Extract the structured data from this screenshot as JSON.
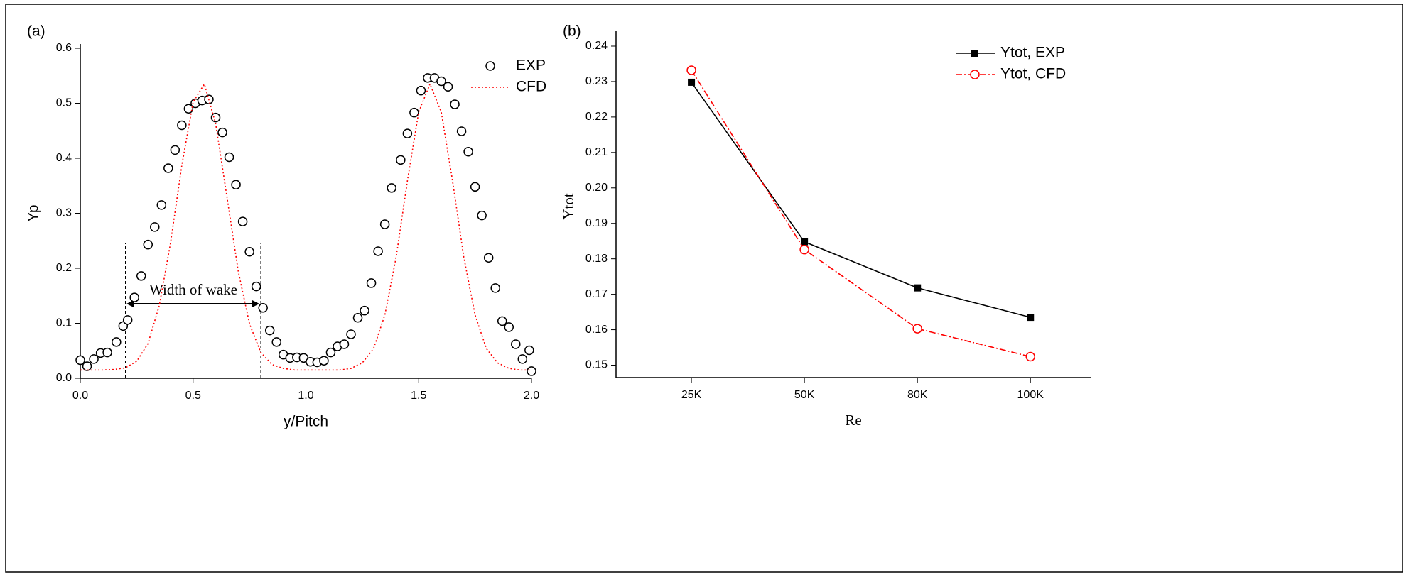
{
  "chart_data": [
    {
      "type": "line",
      "panel_label": "(a)",
      "xlabel": "y/Pitch",
      "ylabel": "Yp",
      "annotation": "Width of wake",
      "xlim": [
        0,
        2
      ],
      "xticks": [
        {
          "value": 0,
          "label": "0.0"
        },
        0.5,
        {
          "value": 1,
          "label": "1.0"
        },
        1.5,
        {
          "value": 2,
          "label": "2.0"
        }
      ],
      "ylim": [
        0,
        0.6
      ],
      "yticks": [
        {
          "value": 0,
          "label": "0.0"
        },
        0.1,
        0.2,
        0.3,
        0.4,
        0.5,
        0.6
      ],
      "legend": "upper right",
      "series": [
        {
          "name": "EXP",
          "color": "#000000",
          "marker": "circle",
          "linestyle": "none",
          "x": [
            0.0,
            0.03,
            0.06,
            0.09,
            0.12,
            0.16,
            0.19,
            0.21,
            0.24,
            0.27,
            0.3,
            0.33,
            0.36,
            0.39,
            0.42,
            0.45,
            0.48,
            0.51,
            0.54,
            0.57,
            0.6,
            0.63,
            0.66,
            0.69,
            0.72,
            0.75,
            0.78,
            0.81,
            0.84,
            0.87,
            0.9,
            0.93,
            0.96,
            0.99,
            1.02,
            1.05,
            1.08,
            1.11,
            1.14,
            1.17,
            1.2,
            1.23,
            1.26,
            1.29,
            1.32,
            1.35,
            1.38,
            1.42,
            1.45,
            1.48,
            1.51,
            1.54,
            1.57,
            1.6,
            1.63,
            1.66,
            1.69,
            1.72,
            1.75,
            1.78,
            1.81,
            1.84,
            1.87,
            1.9,
            1.93,
            1.96,
            1.99,
            2.0
          ],
          "values": [
            0.033,
            0.022,
            0.035,
            0.046,
            0.047,
            0.066,
            0.095,
            0.106,
            0.147,
            0.186,
            0.243,
            0.275,
            0.315,
            0.382,
            0.415,
            0.46,
            0.49,
            0.5,
            0.505,
            0.507,
            0.474,
            0.447,
            0.402,
            0.352,
            0.285,
            0.23,
            0.167,
            0.128,
            0.087,
            0.066,
            0.043,
            0.037,
            0.038,
            0.037,
            0.03,
            0.029,
            0.032,
            0.047,
            0.058,
            0.062,
            0.08,
            0.11,
            0.123,
            0.173,
            0.231,
            0.28,
            0.346,
            0.397,
            0.445,
            0.483,
            0.523,
            0.546,
            0.546,
            0.54,
            0.53,
            0.498,
            0.449,
            0.412,
            0.348,
            0.296,
            0.219,
            0.164,
            0.104,
            0.093,
            0.062,
            0.035,
            0.051,
            0.013
          ]
        },
        {
          "name": "CFD",
          "color": "#ff0000",
          "marker": "none",
          "linestyle": "dotted",
          "x": [
            0,
            0.05,
            0.1,
            0.15,
            0.2,
            0.25,
            0.3,
            0.35,
            0.4,
            0.45,
            0.5,
            0.55,
            0.6,
            0.65,
            0.7,
            0.75,
            0.8,
            0.85,
            0.9,
            0.95,
            1.0,
            1.05,
            1.1,
            1.15,
            1.2,
            1.25,
            1.3,
            1.35,
            1.4,
            1.45,
            1.5,
            1.55,
            1.6,
            1.65,
            1.7,
            1.75,
            1.8,
            1.85,
            1.9,
            1.95,
            2.0
          ],
          "values": [
            0.015,
            0.015,
            0.015,
            0.016,
            0.019,
            0.031,
            0.063,
            0.132,
            0.246,
            0.387,
            0.502,
            0.535,
            0.463,
            0.33,
            0.195,
            0.099,
            0.047,
            0.025,
            0.018,
            0.015,
            0.015,
            0.015,
            0.015,
            0.015,
            0.018,
            0.028,
            0.054,
            0.115,
            0.22,
            0.359,
            0.484,
            0.535,
            0.484,
            0.359,
            0.22,
            0.115,
            0.054,
            0.028,
            0.018,
            0.015,
            0.015
          ]
        }
      ]
    },
    {
      "type": "line",
      "panel_label": "(b)",
      "xlabel": "Re",
      "ylabel": "Ytot",
      "categories": [
        "25K",
        "50K",
        "80K",
        "100K"
      ],
      "ylim": [
        0.1465,
        0.243
      ],
      "yticks": [
        0.15,
        0.16,
        0.17,
        0.18,
        0.19,
        {
          "value": 0.2,
          "label": "0.20"
        },
        0.21,
        0.22,
        0.23,
        0.24
      ],
      "legend": "upper right",
      "series": [
        {
          "name": "Ytot, EXP",
          "color": "#000000",
          "marker": "square",
          "linestyle": "solid",
          "values": [
            0.2298,
            0.1848,
            0.1718,
            0.1635
          ]
        },
        {
          "name": "Ytot, CFD",
          "color": "#ff0000",
          "marker": "circle",
          "linestyle": "dashdot",
          "values": [
            0.2332,
            0.1826,
            0.1603,
            0.1524
          ]
        }
      ]
    }
  ]
}
